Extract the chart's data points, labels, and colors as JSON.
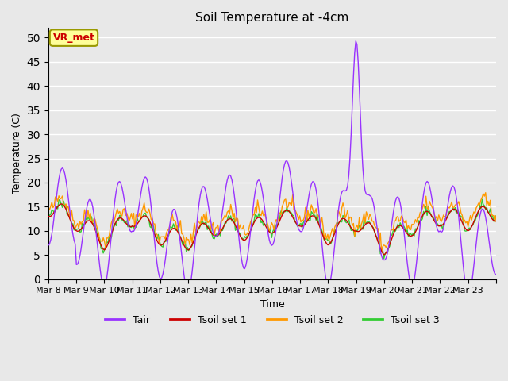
{
  "title": "Soil Temperature at -4cm",
  "xlabel": "Time",
  "ylabel": "Temperature (C)",
  "ylim": [
    0,
    52
  ],
  "yticks": [
    0,
    5,
    10,
    15,
    20,
    25,
    30,
    35,
    40,
    45,
    50
  ],
  "bg_color": "#e8e8e8",
  "plot_bg_color": "#e8e8e8",
  "grid_color": "white",
  "colors": {
    "Tair": "#9933ff",
    "Tsoil_set1": "#cc0000",
    "Tsoil_set2": "#ff9900",
    "Tsoil_set3": "#33cc33"
  },
  "legend_label_box": {
    "text": "VR_met",
    "facecolor": "#ffff99",
    "edgecolor": "#999900",
    "textcolor": "#cc0000"
  },
  "n_points": 384,
  "xtick_positions": [
    0,
    1,
    2,
    3,
    4,
    5,
    6,
    7,
    8,
    9,
    10,
    11,
    12,
    13,
    14,
    15,
    16
  ],
  "xtick_labels": [
    "Mar 8",
    "Mar 9",
    "Mar 10",
    "Mar 11",
    "Mar 12",
    "Mar 13",
    "Mar 14",
    "Mar 15",
    "Mar 16",
    "Mar 17",
    "Mar 18",
    "Mar 19",
    "Mar 20",
    "Mar 21",
    "Mar 22",
    "Mar 23",
    ""
  ],
  "line_width": 1.0
}
